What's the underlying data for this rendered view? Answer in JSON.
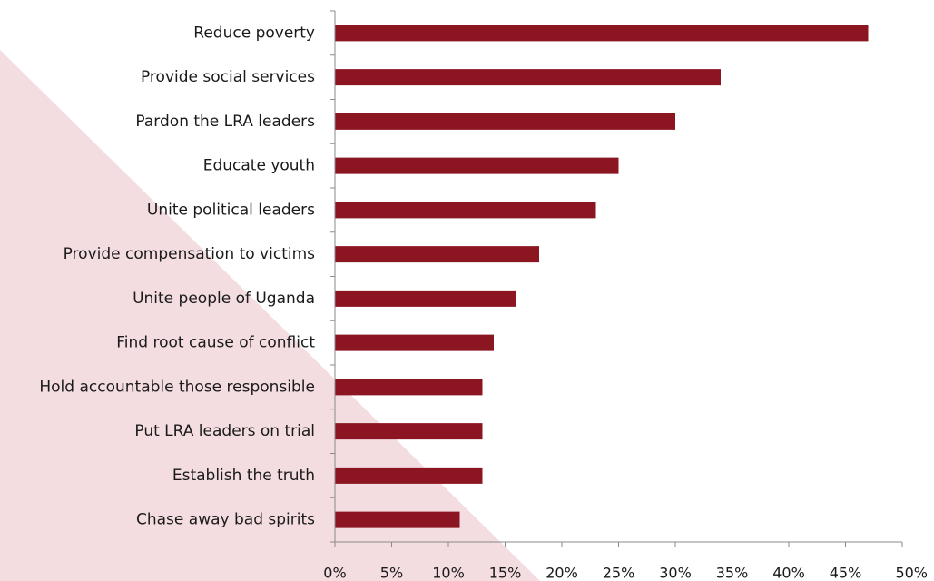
{
  "chart_data": {
    "type": "bar",
    "orientation": "horizontal",
    "title": "",
    "xlabel": "",
    "ylabel": "",
    "categories": [
      "Reduce poverty",
      "Provide social services",
      "Pardon the LRA leaders",
      "Educate youth",
      "Unite political leaders",
      "Provide compensation to victims",
      "Unite people of Uganda",
      "Find root cause of conflict",
      "Hold accountable those responsible",
      "Put LRA leaders on trial",
      "Establish the truth",
      "Chase away bad spirits"
    ],
    "values": [
      47,
      34,
      30,
      25,
      23,
      18,
      16,
      14,
      13,
      13,
      13,
      11
    ],
    "xlim": [
      0,
      50
    ],
    "xticks": [
      0,
      5,
      10,
      15,
      20,
      25,
      30,
      35,
      40,
      45,
      50
    ],
    "xtick_labels": [
      "0%",
      "5%",
      "10%",
      "15%",
      "20%",
      "25%",
      "30%",
      "35%",
      "40%",
      "45%",
      "50%"
    ],
    "grid": false,
    "legend": "none",
    "bar_color": "#8b1520",
    "background_accent": "#f4dde0"
  }
}
